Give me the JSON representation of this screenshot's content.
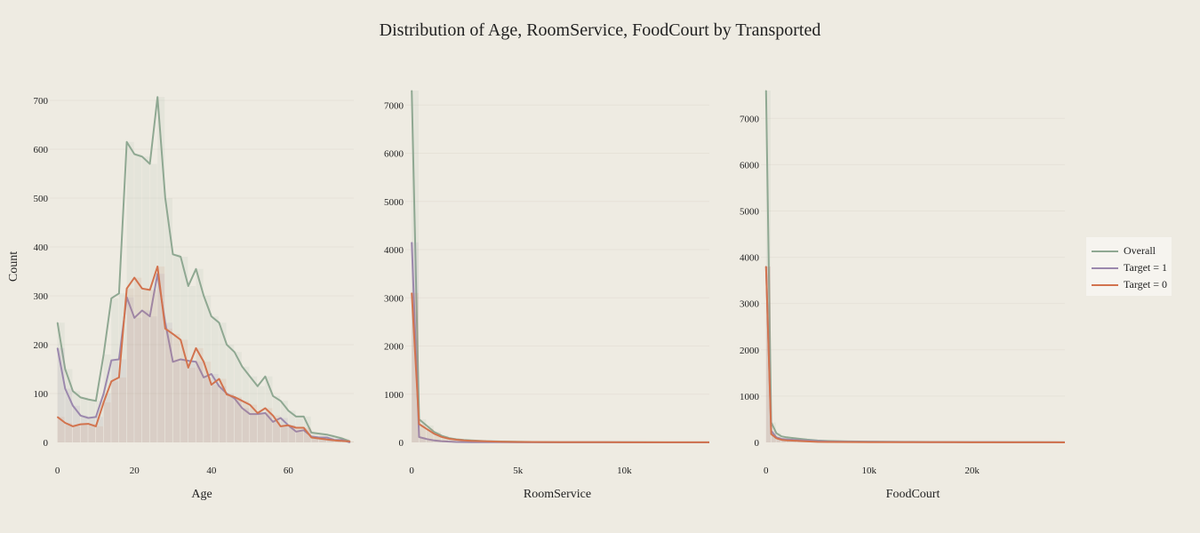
{
  "chart_data": [
    {
      "type": "area",
      "title": "Distribution of Age, RoomService, FoodCourt by Transported",
      "xlabel": "Age",
      "ylabel": "Count",
      "xlim": [
        -2,
        77
      ],
      "ylim": [
        0,
        720
      ],
      "xticks": [
        0,
        20,
        40,
        60
      ],
      "xtick_labels": [
        "0",
        "20",
        "40",
        "60"
      ],
      "yticks": [
        0,
        100,
        200,
        300,
        400,
        500,
        600,
        700
      ],
      "ytick_labels": [
        "0",
        "100",
        "200",
        "300",
        "400",
        "500",
        "600",
        "700"
      ],
      "series": [
        {
          "name": "Overall",
          "x": [
            0,
            2,
            4,
            6,
            8,
            10,
            12,
            14,
            16,
            18,
            20,
            22,
            24,
            26,
            28,
            30,
            32,
            34,
            36,
            38,
            40,
            42,
            44,
            46,
            48,
            50,
            52,
            54,
            56,
            58,
            60,
            62,
            64,
            66,
            68,
            70,
            72,
            74,
            76
          ],
          "y": [
            245,
            150,
            105,
            92,
            88,
            85,
            180,
            295,
            305,
            615,
            590,
            585,
            570,
            707,
            500,
            385,
            380,
            320,
            355,
            300,
            258,
            245,
            200,
            185,
            155,
            135,
            115,
            135,
            95,
            85,
            65,
            53,
            53,
            20,
            18,
            16,
            12,
            8,
            2
          ]
        },
        {
          "name": "Target = 1",
          "x": [
            0,
            2,
            4,
            6,
            8,
            10,
            12,
            14,
            16,
            18,
            20,
            22,
            24,
            26,
            28,
            30,
            32,
            34,
            36,
            38,
            40,
            42,
            44,
            46,
            48,
            50,
            52,
            54,
            56,
            58,
            60,
            62,
            64,
            66,
            68,
            70,
            72,
            74,
            76
          ],
          "y": [
            193,
            110,
            75,
            55,
            50,
            52,
            100,
            168,
            170,
            297,
            255,
            270,
            258,
            345,
            245,
            165,
            170,
            167,
            165,
            133,
            140,
            115,
            100,
            90,
            70,
            58,
            58,
            60,
            42,
            50,
            35,
            22,
            25,
            12,
            10,
            10,
            5,
            5,
            0
          ]
        },
        {
          "name": "Target = 0",
          "x": [
            0,
            2,
            4,
            6,
            8,
            10,
            12,
            14,
            16,
            18,
            20,
            22,
            24,
            26,
            28,
            30,
            32,
            34,
            36,
            38,
            40,
            42,
            44,
            46,
            48,
            50,
            52,
            54,
            56,
            58,
            60,
            62,
            64,
            66,
            68,
            70,
            72,
            74,
            76
          ],
          "y": [
            52,
            40,
            33,
            37,
            38,
            33,
            82,
            125,
            133,
            315,
            337,
            315,
            312,
            360,
            233,
            222,
            210,
            153,
            193,
            165,
            118,
            130,
            98,
            93,
            85,
            77,
            60,
            70,
            55,
            33,
            35,
            30,
            30,
            10,
            8,
            6,
            4,
            3,
            2
          ]
        }
      ]
    },
    {
      "type": "area",
      "xlabel": "RoomService",
      "ylabel": "",
      "xlim": [
        -300,
        14000
      ],
      "ylim": [
        0,
        7300
      ],
      "xticks": [
        0,
        5000,
        10000
      ],
      "xtick_labels": [
        "0",
        "5k",
        "10k"
      ],
      "yticks": [
        0,
        1000,
        2000,
        3000,
        4000,
        5000,
        6000,
        7000
      ],
      "ytick_labels": [
        "0",
        "1000",
        "2000",
        "3000",
        "4000",
        "5000",
        "6000",
        "7000"
      ],
      "series": [
        {
          "name": "Overall",
          "x": [
            0,
            350,
            700,
            1050,
            1400,
            1750,
            2100,
            2450,
            2800,
            3500,
            4200,
            5000,
            6000,
            7000,
            8000,
            9000,
            10000,
            11000,
            12000,
            13000,
            14000
          ],
          "y": [
            7300,
            480,
            350,
            220,
            140,
            90,
            65,
            50,
            40,
            25,
            18,
            12,
            8,
            6,
            5,
            4,
            3,
            3,
            2,
            2,
            1
          ]
        },
        {
          "name": "Target = 1",
          "x": [
            0,
            350,
            700,
            1050,
            1400,
            1750,
            2100,
            2450,
            2800,
            3500,
            4200,
            5000,
            6000,
            7000,
            8000,
            9000,
            10000,
            11000,
            12000,
            13000,
            14000
          ],
          "y": [
            4150,
            110,
            70,
            40,
            25,
            16,
            10,
            8,
            6,
            4,
            3,
            2,
            2,
            1,
            1,
            1,
            1,
            0,
            0,
            0,
            0
          ]
        },
        {
          "name": "Target = 0",
          "x": [
            0,
            350,
            700,
            1050,
            1400,
            1750,
            2100,
            2450,
            2800,
            3500,
            4200,
            5000,
            6000,
            7000,
            8000,
            9000,
            10000,
            11000,
            12000,
            13000,
            14000
          ],
          "y": [
            3100,
            380,
            280,
            180,
            115,
            75,
            55,
            42,
            34,
            22,
            15,
            10,
            7,
            5,
            4,
            3,
            2,
            2,
            2,
            1,
            1
          ]
        }
      ]
    },
    {
      "type": "area",
      "xlabel": "FoodCourt",
      "ylabel": "",
      "xlim": [
        -500,
        29000
      ],
      "ylim": [
        0,
        7600
      ],
      "xticks": [
        0,
        10000,
        20000
      ],
      "xtick_labels": [
        "0",
        "10k",
        "20k"
      ],
      "yticks": [
        0,
        1000,
        2000,
        3000,
        4000,
        5000,
        6000,
        7000
      ],
      "ytick_labels": [
        "0",
        "1000",
        "2000",
        "3000",
        "4000",
        "5000",
        "6000",
        "7000"
      ],
      "series": [
        {
          "name": "Overall",
          "x": [
            0,
            500,
            1000,
            1500,
            2000,
            3000,
            4000,
            5000,
            6000,
            8000,
            10000,
            12000,
            14000,
            16000,
            18000,
            20000,
            22000,
            24000,
            26000,
            28000,
            29000
          ],
          "y": [
            7600,
            430,
            200,
            130,
            110,
            85,
            60,
            40,
            30,
            22,
            18,
            15,
            12,
            10,
            8,
            6,
            5,
            4,
            3,
            2,
            1
          ]
        },
        {
          "name": "Target = 1",
          "x": [
            0,
            500,
            1000,
            1500,
            2000,
            3000,
            4000,
            5000,
            6000,
            8000,
            10000,
            12000,
            14000,
            16000,
            18000,
            20000,
            22000,
            24000,
            26000,
            28000,
            29000
          ],
          "y": [
            3800,
            250,
            110,
            75,
            65,
            50,
            38,
            28,
            20,
            15,
            12,
            10,
            8,
            6,
            5,
            4,
            3,
            2,
            2,
            1,
            1
          ]
        },
        {
          "name": "Target = 0",
          "x": [
            0,
            500,
            1000,
            1500,
            2000,
            3000,
            4000,
            5000,
            6000,
            8000,
            10000,
            12000,
            14000,
            16000,
            18000,
            20000,
            22000,
            24000,
            26000,
            28000,
            29000
          ],
          "y": [
            3800,
            180,
            90,
            55,
            45,
            35,
            22,
            12,
            10,
            7,
            6,
            5,
            4,
            4,
            3,
            2,
            2,
            2,
            1,
            1,
            0
          ]
        }
      ]
    }
  ],
  "legend": {
    "placement": "right",
    "items": [
      {
        "name": "Overall",
        "color": "#8fa892"
      },
      {
        "name": "Target = 1",
        "color": "#9b88ad"
      },
      {
        "name": "Target = 0",
        "color": "#d2734e"
      }
    ]
  },
  "colors": {
    "background": "#eeebe2",
    "grid": "#e6e2d8",
    "text": "#222222"
  }
}
